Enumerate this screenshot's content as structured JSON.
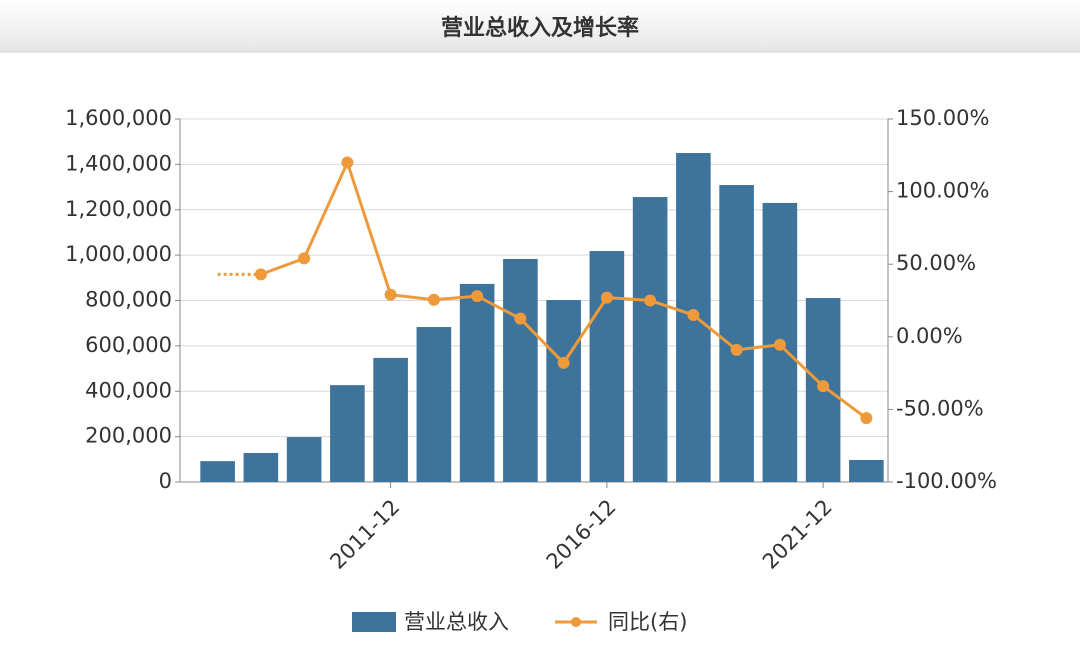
{
  "chart_data": {
    "type": "bar-line",
    "title": "营业总收入及增长率",
    "categories": [
      null,
      null,
      null,
      null,
      "2011-12",
      null,
      null,
      null,
      null,
      "2016-12",
      null,
      null,
      null,
      null,
      "2021-12",
      null
    ],
    "series": [
      {
        "name": "营业总收入",
        "type": "bar",
        "color": "#3e739b",
        "values": [
          92000,
          128000,
          198000,
          427000,
          547000,
          683000,
          873000,
          983000,
          802000,
          1018000,
          1256000,
          1450000,
          1309000,
          1230000,
          811000,
          97000
        ]
      },
      {
        "name": "同比(右)",
        "type": "line",
        "axis": "y2",
        "color": "#ee9a3a",
        "values": [
          null,
          43,
          54,
          120,
          29,
          25.5,
          28,
          12.5,
          -18,
          27,
          25,
          15,
          -9,
          -5.5,
          -34,
          -56
        ]
      }
    ],
    "ylim": [
      0,
      1600000
    ],
    "yticks": [
      0,
      {
        "value": 200000,
        "label": "200,000"
      },
      {
        "value": 400000,
        "label": "400,000"
      },
      {
        "value": 600000,
        "label": "600,000"
      },
      {
        "value": 800000,
        "label": "800,000"
      },
      {
        "value": 1000000,
        "label": "1,000,000"
      },
      {
        "value": 1200000,
        "label": "1,200,000"
      },
      {
        "value": 1400000,
        "label": "1,400,000"
      },
      {
        "value": 1600000,
        "label": "1,600,000"
      }
    ],
    "y2lim": [
      -100,
      150
    ],
    "y2ticks": [
      {
        "value": -100,
        "label": "-100.00%"
      },
      {
        "value": -50,
        "label": "-50.00%"
      },
      {
        "value": 0,
        "label": "0.00%"
      },
      {
        "value": 50,
        "label": "50.00%"
      },
      {
        "value": 100,
        "label": "100.00%"
      },
      {
        "value": 150,
        "label": "150.00%"
      }
    ],
    "grid": true
  }
}
